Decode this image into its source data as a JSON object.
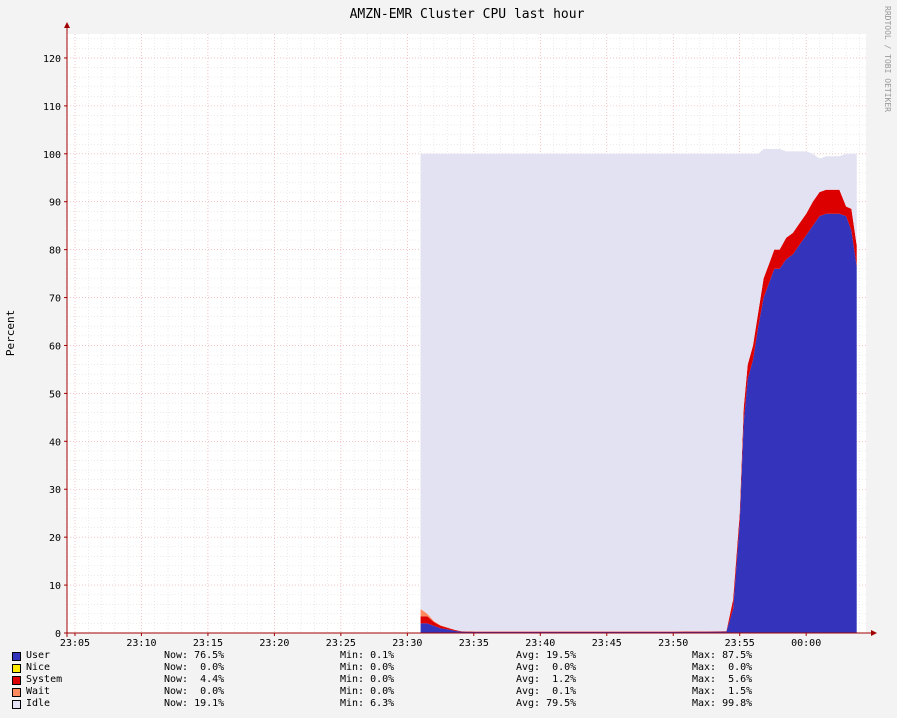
{
  "title": "AMZN-EMR Cluster CPU last hour",
  "watermark": "RRDTOOL / TOBI OETIKER",
  "colors": {
    "user": "#3333bb",
    "nice": "#ffea00",
    "system": "#dd0000",
    "wait": "#ff8a60",
    "idle": "#e2e2f2",
    "grid_major": "#f0a0a0",
    "grid_minor": "#d8d8d8",
    "axis": "#a00000"
  },
  "chart_data": {
    "type": "area",
    "stacked": true,
    "title": "AMZN-EMR Cluster CPU last hour",
    "ylabel": "Percent",
    "xlabel": "",
    "ylim": [
      0,
      125
    ],
    "yticks": [
      0,
      10,
      20,
      30,
      40,
      50,
      60,
      70,
      80,
      90,
      100,
      110,
      120
    ],
    "x_tick_labels": [
      "23:05",
      "23:10",
      "23:15",
      "23:20",
      "23:25",
      "23:30",
      "23:35",
      "23:40",
      "23:45",
      "23:50",
      "23:55",
      "00:00"
    ],
    "x_tick_minutes": [
      5,
      10,
      15,
      20,
      25,
      30,
      35,
      40,
      45,
      50,
      55,
      60
    ],
    "x_minutes_range": [
      4.4,
      64.5
    ],
    "grid": true,
    "series_order": [
      "user",
      "nice",
      "system",
      "wait",
      "idle"
    ],
    "samples": [
      {
        "t": 31.0,
        "user": 2.0,
        "nice": 0,
        "system": 1.5,
        "wait": 1.5,
        "idle": 95.0
      },
      {
        "t": 31.5,
        "user": 2.0,
        "nice": 0,
        "system": 1.5,
        "wait": 0.5,
        "idle": 96.0
      },
      {
        "t": 32.0,
        "user": 1.5,
        "nice": 0,
        "system": 0.8,
        "wait": 0.2,
        "idle": 97.5
      },
      {
        "t": 32.5,
        "user": 1.0,
        "nice": 0,
        "system": 0.5,
        "wait": 0.1,
        "idle": 98.4
      },
      {
        "t": 33.0,
        "user": 0.8,
        "nice": 0,
        "system": 0.3,
        "wait": 0.1,
        "idle": 98.8
      },
      {
        "t": 33.5,
        "user": 0.5,
        "nice": 0,
        "system": 0.2,
        "wait": 0.0,
        "idle": 99.3
      },
      {
        "t": 34.0,
        "user": 0.3,
        "nice": 0,
        "system": 0.1,
        "wait": 0.0,
        "idle": 99.6
      },
      {
        "t": 35.0,
        "user": 0.2,
        "nice": 0,
        "system": 0.1,
        "wait": 0.0,
        "idle": 99.7
      },
      {
        "t": 40.0,
        "user": 0.2,
        "nice": 0,
        "system": 0.1,
        "wait": 0.0,
        "idle": 99.7
      },
      {
        "t": 45.0,
        "user": 0.2,
        "nice": 0,
        "system": 0.1,
        "wait": 0.0,
        "idle": 99.7
      },
      {
        "t": 50.0,
        "user": 0.2,
        "nice": 0,
        "system": 0.1,
        "wait": 0.0,
        "idle": 99.7
      },
      {
        "t": 54.0,
        "user": 0.3,
        "nice": 0,
        "system": 0.1,
        "wait": 0.0,
        "idle": 99.6
      },
      {
        "t": 54.5,
        "user": 5.0,
        "nice": 0,
        "system": 2.0,
        "wait": 0.0,
        "idle": 93.0
      },
      {
        "t": 55.0,
        "user": 23.0,
        "nice": 0,
        "system": 2.0,
        "wait": 0.0,
        "idle": 75.0
      },
      {
        "t": 55.3,
        "user": 44.0,
        "nice": 0,
        "system": 3.0,
        "wait": 0.0,
        "idle": 53.0
      },
      {
        "t": 55.6,
        "user": 53.0,
        "nice": 0,
        "system": 3.0,
        "wait": 0.0,
        "idle": 44.0
      },
      {
        "t": 56.0,
        "user": 57.0,
        "nice": 0,
        "system": 3.0,
        "wait": 0.0,
        "idle": 40.0
      },
      {
        "t": 56.4,
        "user": 64.0,
        "nice": 0,
        "system": 3.0,
        "wait": 0.0,
        "idle": 33.0
      },
      {
        "t": 56.8,
        "user": 70.0,
        "nice": 0,
        "system": 4.0,
        "wait": 0.0,
        "idle": 27.0
      },
      {
        "t": 57.2,
        "user": 73.0,
        "nice": 0,
        "system": 4.0,
        "wait": 0.0,
        "idle": 24.0
      },
      {
        "t": 57.6,
        "user": 76.0,
        "nice": 0,
        "system": 4.0,
        "wait": 0.0,
        "idle": 21.0
      },
      {
        "t": 58.0,
        "user": 76.0,
        "nice": 0,
        "system": 4.0,
        "wait": 0.0,
        "idle": 21.0
      },
      {
        "t": 58.5,
        "user": 78.0,
        "nice": 0,
        "system": 4.5,
        "wait": 0.0,
        "idle": 18.0
      },
      {
        "t": 59.0,
        "user": 79.0,
        "nice": 0,
        "system": 4.5,
        "wait": 0.0,
        "idle": 17.0
      },
      {
        "t": 59.5,
        "user": 81.0,
        "nice": 0,
        "system": 4.5,
        "wait": 0.0,
        "idle": 15.0
      },
      {
        "t": 60.0,
        "user": 83.0,
        "nice": 0,
        "system": 4.5,
        "wait": 0.0,
        "idle": 13.0
      },
      {
        "t": 60.5,
        "user": 85.0,
        "nice": 0,
        "system": 5.0,
        "wait": 0.0,
        "idle": 10.0
      },
      {
        "t": 61.0,
        "user": 87.0,
        "nice": 0,
        "system": 5.0,
        "wait": 0.0,
        "idle": 7.0
      },
      {
        "t": 61.5,
        "user": 87.5,
        "nice": 0,
        "system": 5.0,
        "wait": 0.0,
        "idle": 7.0
      },
      {
        "t": 62.0,
        "user": 87.5,
        "nice": 0,
        "system": 5.0,
        "wait": 0.0,
        "idle": 7.0
      },
      {
        "t": 62.5,
        "user": 87.5,
        "nice": 0,
        "system": 5.0,
        "wait": 0.0,
        "idle": 7.0
      },
      {
        "t": 63.0,
        "user": 87.0,
        "nice": 0,
        "system": 2.0,
        "wait": 0.0,
        "idle": 11.0
      },
      {
        "t": 63.4,
        "user": 84.0,
        "nice": 0,
        "system": 4.5,
        "wait": 0.0,
        "idle": 11.5
      },
      {
        "t": 63.8,
        "user": 76.5,
        "nice": 0,
        "system": 4.4,
        "wait": 0.0,
        "idle": 19.1
      }
    ]
  },
  "legend": [
    {
      "key": "user",
      "name": "User",
      "now": "76.5%",
      "min": "0.1%",
      "avg": "19.5%",
      "max": "87.5%"
    },
    {
      "key": "nice",
      "name": "Nice",
      "now": " 0.0%",
      "min": "0.0%",
      "avg": " 0.0%",
      "max": " 0.0%"
    },
    {
      "key": "system",
      "name": "System",
      "now": " 4.4%",
      "min": "0.0%",
      "avg": " 1.2%",
      "max": " 5.6%"
    },
    {
      "key": "wait",
      "name": "Wait",
      "now": " 0.0%",
      "min": "0.0%",
      "avg": " 0.1%",
      "max": " 1.5%"
    },
    {
      "key": "idle",
      "name": "Idle",
      "now": "19.1%",
      "min": "6.3%",
      "avg": "79.5%",
      "max": "99.8%"
    }
  ],
  "legend_labels": {
    "now": "Now:",
    "min": "Min:",
    "avg": "Avg:",
    "max": "Max:"
  }
}
